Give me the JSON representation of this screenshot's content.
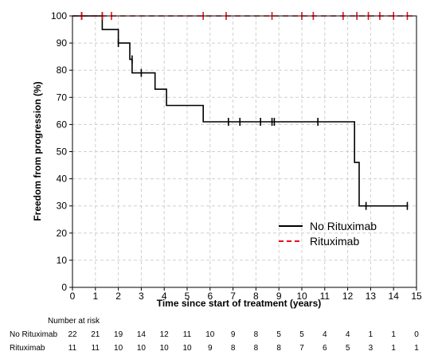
{
  "chart_data": {
    "type": "line",
    "xlabel": "Time since start of treatment (years)",
    "ylabel": "Freedom from progression (%)",
    "xlim": [
      0,
      15
    ],
    "ylim": [
      0,
      100
    ],
    "xticks": [
      "0",
      "1",
      "2",
      "3",
      "4",
      "5",
      "6",
      "7",
      "8",
      "9",
      "10",
      "11",
      "12",
      "13",
      "14",
      "15"
    ],
    "yticks": [
      "0",
      "10",
      "20",
      "30",
      "40",
      "50",
      "60",
      "70",
      "80",
      "90",
      "100"
    ],
    "grid": true,
    "legend_position": "lower-right",
    "series": [
      {
        "name": "No Rituximab",
        "color": "#000000",
        "dash": "solid",
        "steps": [
          [
            0,
            100
          ],
          [
            1.3,
            100
          ],
          [
            1.3,
            95
          ],
          [
            2.0,
            95
          ],
          [
            2.0,
            90
          ],
          [
            2.5,
            90
          ],
          [
            2.5,
            84
          ],
          [
            2.6,
            84
          ],
          [
            2.6,
            79
          ],
          [
            3.6,
            79
          ],
          [
            3.6,
            73
          ],
          [
            4.1,
            73
          ],
          [
            4.1,
            67
          ],
          [
            5.7,
            67
          ],
          [
            5.7,
            61
          ],
          [
            12.3,
            61
          ],
          [
            12.3,
            46
          ],
          [
            12.5,
            46
          ],
          [
            12.5,
            30
          ],
          [
            14.6,
            30
          ]
        ],
        "censored": [
          [
            0.4,
            100
          ],
          [
            1.3,
            100
          ],
          [
            2.0,
            90
          ],
          [
            2.6,
            84
          ],
          [
            3.0,
            79
          ],
          [
            6.8,
            61
          ],
          [
            7.3,
            61
          ],
          [
            8.2,
            61
          ],
          [
            8.7,
            61
          ],
          [
            8.8,
            61
          ],
          [
            10.7,
            61
          ],
          [
            12.8,
            30
          ],
          [
            14.6,
            30
          ]
        ]
      },
      {
        "name": "Rituximab",
        "color": "#e8101a",
        "dash": "dashed",
        "steps": [
          [
            0,
            100
          ],
          [
            15,
            100
          ]
        ],
        "censored": [
          [
            0.4,
            100
          ],
          [
            1.3,
            100
          ],
          [
            1.7,
            100
          ],
          [
            5.7,
            100
          ],
          [
            6.7,
            100
          ],
          [
            8.7,
            100
          ],
          [
            10.0,
            100
          ],
          [
            10.5,
            100
          ],
          [
            11.8,
            100
          ],
          [
            12.4,
            100
          ],
          [
            12.9,
            100
          ],
          [
            13.4,
            100
          ],
          [
            14.0,
            100
          ],
          [
            14.6,
            100
          ]
        ]
      }
    ],
    "risk_table": {
      "title": "Number at risk",
      "rows": [
        {
          "label": "No Rituximab",
          "values": [
            "22",
            "21",
            "19",
            "14",
            "12",
            "11",
            "10",
            "9",
            "8",
            "5",
            "5",
            "4",
            "4",
            "1",
            "1",
            "0"
          ]
        },
        {
          "label": "Rituximab",
          "values": [
            "11",
            "11",
            "10",
            "10",
            "10",
            "10",
            "9",
            "8",
            "8",
            "8",
            "7",
            "6",
            "5",
            "3",
            "1",
            "1"
          ]
        }
      ]
    }
  }
}
